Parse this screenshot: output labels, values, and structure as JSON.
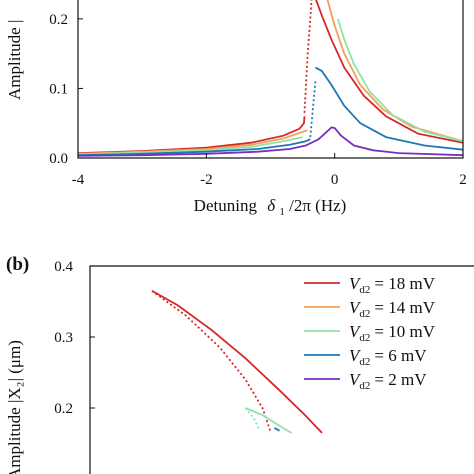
{
  "panel_b_label": "(b)",
  "chart_data": [
    {
      "type": "line",
      "panel": "(a)",
      "ylabel": "Amplitude |",
      "xlabel_prefix": "Detuning",
      "xlabel_var": "δ",
      "xlabel_sub": "1",
      "xlabel_suffix": "/2π (Hz)",
      "xlim": [
        -4,
        2
      ],
      "ylim": [
        0,
        0.23
      ],
      "xticks": [
        "-4",
        "-2",
        "0",
        "2"
      ],
      "xtick_values": [
        -4,
        -2,
        0,
        2
      ],
      "yticks": [
        "0.0",
        "0.1",
        "0.2"
      ],
      "ytick_values": [
        0.0,
        0.1,
        0.2
      ],
      "grid": false,
      "series": [
        {
          "color": "#d62728",
          "stable": [
            [
              -4,
              0.007
            ],
            [
              -3,
              0.01
            ],
            [
              -2,
              0.015
            ],
            [
              -1.3,
              0.022
            ],
            [
              -0.8,
              0.032
            ],
            [
              -0.55,
              0.042
            ],
            [
              -0.48,
              0.05
            ],
            [
              -0.47,
              0.06
            ]
          ],
          "unstable": [
            [
              -0.47,
              0.065
            ],
            [
              -0.45,
              0.1
            ],
            [
              -0.42,
              0.15
            ],
            [
              -0.38,
              0.2
            ],
            [
              -0.36,
              0.23
            ]
          ],
          "upper": [
            [
              -0.3,
              0.23
            ],
            [
              -0.2,
              0.205
            ],
            [
              -0.05,
              0.17
            ],
            [
              0.15,
              0.13
            ],
            [
              0.45,
              0.09
            ],
            [
              0.8,
              0.06
            ],
            [
              1.3,
              0.035
            ],
            [
              2,
              0.022
            ]
          ]
        },
        {
          "color": "#f4a055",
          "stable": [
            [
              -4,
              0.006
            ],
            [
              -3,
              0.009
            ],
            [
              -2,
              0.013
            ],
            [
              -1.3,
              0.019
            ],
            [
              -0.8,
              0.028
            ],
            [
              -0.55,
              0.036
            ],
            [
              -0.42,
              0.04
            ]
          ],
          "unstable": [],
          "upper": [
            [
              -0.12,
              0.23
            ],
            [
              0.0,
              0.19
            ],
            [
              0.15,
              0.15
            ],
            [
              0.4,
              0.105
            ],
            [
              0.75,
              0.07
            ],
            [
              1.2,
              0.045
            ],
            [
              2,
              0.024
            ]
          ]
        },
        {
          "color": "#8fe3a8",
          "stable": [
            [
              -4,
              0.005
            ],
            [
              -3,
              0.008
            ],
            [
              -2,
              0.011
            ],
            [
              -1.3,
              0.016
            ],
            [
              -0.8,
              0.024
            ],
            [
              -0.5,
              0.03
            ]
          ],
          "unstable": [],
          "upper": [
            [
              0.05,
              0.2
            ],
            [
              0.15,
              0.17
            ],
            [
              0.3,
              0.135
            ],
            [
              0.55,
              0.095
            ],
            [
              0.9,
              0.062
            ],
            [
              1.4,
              0.038
            ],
            [
              2,
              0.024
            ]
          ]
        },
        {
          "color": "#1f77b4",
          "stable": [
            [
              -4,
              0.004
            ],
            [
              -3,
              0.006
            ],
            [
              -2,
              0.009
            ],
            [
              -1.2,
              0.013
            ],
            [
              -0.7,
              0.019
            ],
            [
              -0.45,
              0.024
            ],
            [
              -0.38,
              0.027
            ]
          ],
          "unstable": [
            [
              -0.38,
              0.03
            ],
            [
              -0.35,
              0.06
            ],
            [
              -0.32,
              0.09
            ],
            [
              -0.3,
              0.11
            ]
          ],
          "upper": [
            [
              -0.3,
              0.13
            ],
            [
              -0.2,
              0.125
            ],
            [
              -0.05,
              0.105
            ],
            [
              0.15,
              0.075
            ],
            [
              0.4,
              0.05
            ],
            [
              0.8,
              0.03
            ],
            [
              1.4,
              0.018
            ],
            [
              2,
              0.012
            ]
          ]
        },
        {
          "color": "#7b2fbe",
          "stable": [
            [
              -4,
              0.003
            ],
            [
              -3,
              0.004
            ],
            [
              -2,
              0.006
            ],
            [
              -1.2,
              0.009
            ],
            [
              -0.7,
              0.013
            ],
            [
              -0.45,
              0.018
            ],
            [
              -0.25,
              0.027
            ],
            [
              -0.12,
              0.038
            ],
            [
              -0.05,
              0.044
            ],
            [
              0.0,
              0.043
            ],
            [
              0.1,
              0.032
            ],
            [
              0.3,
              0.018
            ],
            [
              0.6,
              0.011
            ],
            [
              1.0,
              0.007
            ],
            [
              2,
              0.004
            ]
          ],
          "unstable": [],
          "upper": []
        }
      ]
    },
    {
      "type": "line",
      "panel": "(b)",
      "ylabel": "Amplitude |X₂| (μm)",
      "ylim": [
        0.15,
        0.4
      ],
      "yticks": [
        "0.4",
        "0.3",
        "0.2"
      ],
      "ytick_values": [
        0.4,
        0.3,
        0.2
      ],
      "legend": "top-right",
      "grid": false,
      "series": [
        {
          "name": "= 18 mV",
          "color": "#d62728",
          "upper": [
            [
              0.0,
              0.365
            ],
            [
              0.15,
              0.345
            ],
            [
              0.35,
              0.31
            ],
            [
              0.55,
              0.27
            ],
            [
              0.75,
              0.225
            ],
            [
              0.9,
              0.19
            ],
            [
              1.0,
              0.165
            ]
          ],
          "unstable": [
            [
              0.0,
              0.365
            ],
            [
              0.2,
              0.33
            ],
            [
              0.4,
              0.285
            ],
            [
              0.55,
              0.24
            ],
            [
              0.65,
              0.2
            ],
            [
              0.7,
              0.165
            ]
          ]
        },
        {
          "name": "= 14 mV",
          "color": "#f4a055",
          "upper": [],
          "unstable": []
        },
        {
          "name": "= 10 mV",
          "color": "#8fe3a8",
          "upper": [
            [
              0.55,
              0.2
            ],
            [
              0.65,
              0.19
            ],
            [
              0.75,
              0.175
            ],
            [
              0.82,
              0.165
            ]
          ],
          "unstable": [
            [
              0.55,
              0.2
            ],
            [
              0.6,
              0.185
            ],
            [
              0.63,
              0.17
            ]
          ]
        },
        {
          "name": "= 6 mV",
          "color": "#1f77b4",
          "upper": [
            [
              0.72,
              0.172
            ],
            [
              0.75,
              0.168
            ]
          ],
          "unstable": []
        },
        {
          "name": "= 2 mV",
          "color": "#7b2fbe",
          "upper": [],
          "unstable": []
        }
      ],
      "legend_symbol": "V",
      "legend_sub": "d2"
    }
  ]
}
